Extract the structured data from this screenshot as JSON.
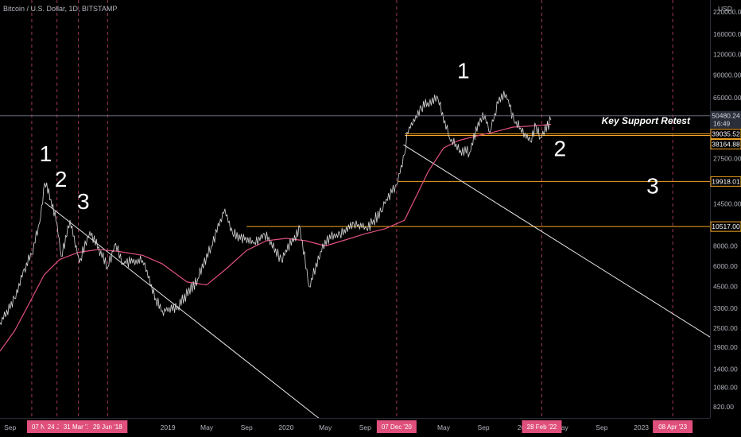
{
  "header": {
    "symbol": "Bitcoin / U.S. Dollar, 1D, BITSTAMP",
    "currency": "USD"
  },
  "current_price": {
    "value": "50480.24",
    "countdown": "16:49"
  },
  "price_axis": {
    "ticks": [
      "220000.00",
      "160000.00",
      "120000.00",
      "90000.00",
      "65000.00",
      "50000.00",
      "27500.00",
      "14500.00",
      "8000.00",
      "6000.00",
      "4500.00",
      "3300.00",
      "2500.00",
      "1900.00",
      "1400.00",
      "1080.00",
      "820.00"
    ]
  },
  "price_tags": [
    {
      "label": "39035.52"
    },
    {
      "label": "38164.88"
    },
    {
      "label": "19918.01"
    },
    {
      "label": "10517.00"
    }
  ],
  "time_axis": {
    "labels": [
      "Sep",
      "2019",
      "May",
      "Sep",
      "2020",
      "May",
      "Sep",
      "May",
      "Sep",
      "202",
      "May",
      "Sep",
      "2023"
    ]
  },
  "date_tags": [
    "07 Nov '1",
    "24 Jan",
    "31 Mar '18",
    "29 Jun '18",
    "07 Dec '20",
    "28 Feb '22",
    "08 Apr '23"
  ],
  "annotations": {
    "waves": [
      "1",
      "2",
      "3",
      "1",
      "2",
      "3"
    ],
    "note": "Key Support Retest"
  },
  "colors": {
    "background": "#000000",
    "price_line": "#d8d8d8",
    "moving_average": "#e0507c",
    "support_line": "#f5a623",
    "trendline": "#e6e6e6",
    "date_marker": "#e0507c",
    "current_price_line": "#6a6d78"
  },
  "chart_data": {
    "type": "line",
    "title": "Bitcoin / U.S. Dollar, 1D, BITSTAMP",
    "y_scale": "log",
    "ylim": [
      700,
      260000
    ],
    "xlim": [
      "2017-08-01",
      "2023-08-01"
    ],
    "series": [
      {
        "name": "",
        "type": "price",
        "x": [
          "2017-08-01",
          "2017-09-15",
          "2017-10-15",
          "2017-11-07",
          "2017-12-01",
          "2017-12-17",
          "2018-01-05",
          "2018-01-24",
          "2018-02-06",
          "2018-03-05",
          "2018-03-31",
          "2018-04-06",
          "2018-05-05",
          "2018-06-29",
          "2018-07-24",
          "2018-08-15",
          "2018-10-15",
          "2018-11-25",
          "2018-12-15",
          "2019-02-01",
          "2019-04-03",
          "2019-05-15",
          "2019-06-26",
          "2019-07-20",
          "2019-09-25",
          "2019-10-26",
          "2019-12-17",
          "2020-02-13",
          "2020-03-12",
          "2020-04-30",
          "2020-06-15",
          "2020-07-28",
          "2020-09-05",
          "2020-10-21",
          "2020-11-05",
          "2020-12-07",
          "2020-12-31",
          "2021-01-08",
          "2021-02-21",
          "2021-03-13",
          "2021-04-14",
          "2021-05-19",
          "2021-06-22",
          "2021-07-20",
          "2021-08-22",
          "2021-09-06",
          "2021-09-21",
          "2021-10-20",
          "2021-11-10",
          "2021-12-04",
          "2022-01-24",
          "2022-02-10",
          "2022-02-24",
          "2022-03-28"
        ],
        "y": [
          2700,
          3800,
          5800,
          7100,
          11000,
          19500,
          15500,
          11000,
          6900,
          11500,
          6900,
          6700,
          9800,
          5900,
          8300,
          6300,
          6500,
          3800,
          3200,
          3400,
          5000,
          8000,
          13500,
          9500,
          8400,
          9500,
          6600,
          10300,
          4500,
          8700,
          9500,
          11000,
          10200,
          12900,
          15500,
          19000,
          29000,
          40000,
          57000,
          61000,
          64000,
          37000,
          31000,
          30000,
          49000,
          51000,
          40000,
          66000,
          68500,
          47000,
          35000,
          44000,
          37000,
          47500
        ]
      },
      {
        "name": "",
        "type": "moving_average",
        "x": [
          "2017-08-01",
          "2017-09-15",
          "2017-11-01",
          "2017-12-15",
          "2018-02-01",
          "2018-03-31",
          "2018-06-01",
          "2018-08-01",
          "2018-10-15",
          "2018-12-15",
          "2019-03-01",
          "2019-05-01",
          "2019-07-01",
          "2019-09-01",
          "2019-11-01",
          "2020-01-01",
          "2020-03-01",
          "2020-05-01",
          "2020-07-01",
          "2020-09-01",
          "2020-11-01",
          "2020-12-31",
          "2021-02-01",
          "2021-03-15",
          "2021-05-01",
          "2021-06-15",
          "2021-08-01",
          "2021-10-01",
          "2021-12-01",
          "2022-01-15",
          "2022-02-28",
          "2022-03-28"
        ],
        "y": [
          1800,
          2400,
          3600,
          5300,
          6600,
          7300,
          7600,
          7400,
          7000,
          6200,
          4800,
          4600,
          5800,
          7500,
          8600,
          8900,
          8600,
          8000,
          8700,
          9500,
          10200,
          11500,
          15500,
          23000,
          32000,
          35500,
          37500,
          40000,
          43000,
          43500,
          44200,
          44700
        ]
      }
    ],
    "horizontal_levels": [
      39035.52,
      38164.88,
      19918.01,
      10517.0
    ],
    "trendlines": [
      {
        "from": [
          "2017-12-17",
          14800
        ],
        "to": [
          "2020-07-01",
          520
        ]
      },
      {
        "from": [
          "2020-12-28",
          33500
        ],
        "to": [
          "2023-08-01",
          2200
        ]
      }
    ],
    "vertical_markers": [
      "2017-11-07",
      "2018-01-24",
      "2018-03-31",
      "2018-06-29",
      "2020-12-07",
      "2022-02-28",
      "2023-04-08"
    ],
    "wave_labels": [
      {
        "label": "1",
        "x": "2017-12-20",
        "y": 26500
      },
      {
        "label": "2",
        "x": "2018-02-05",
        "y": 18500
      },
      {
        "label": "3",
        "x": "2018-04-15",
        "y": 13500
      },
      {
        "label": "1",
        "x": "2021-07-01",
        "y": 86000
      },
      {
        "label": "2",
        "x": "2022-04-25",
        "y": 28500
      },
      {
        "label": "3",
        "x": "2023-02-05",
        "y": 16800
      }
    ],
    "note": {
      "text": "Key Support Retest",
      "x": "2023-01-15",
      "y": 45000
    },
    "grid": false,
    "legend": "none"
  }
}
